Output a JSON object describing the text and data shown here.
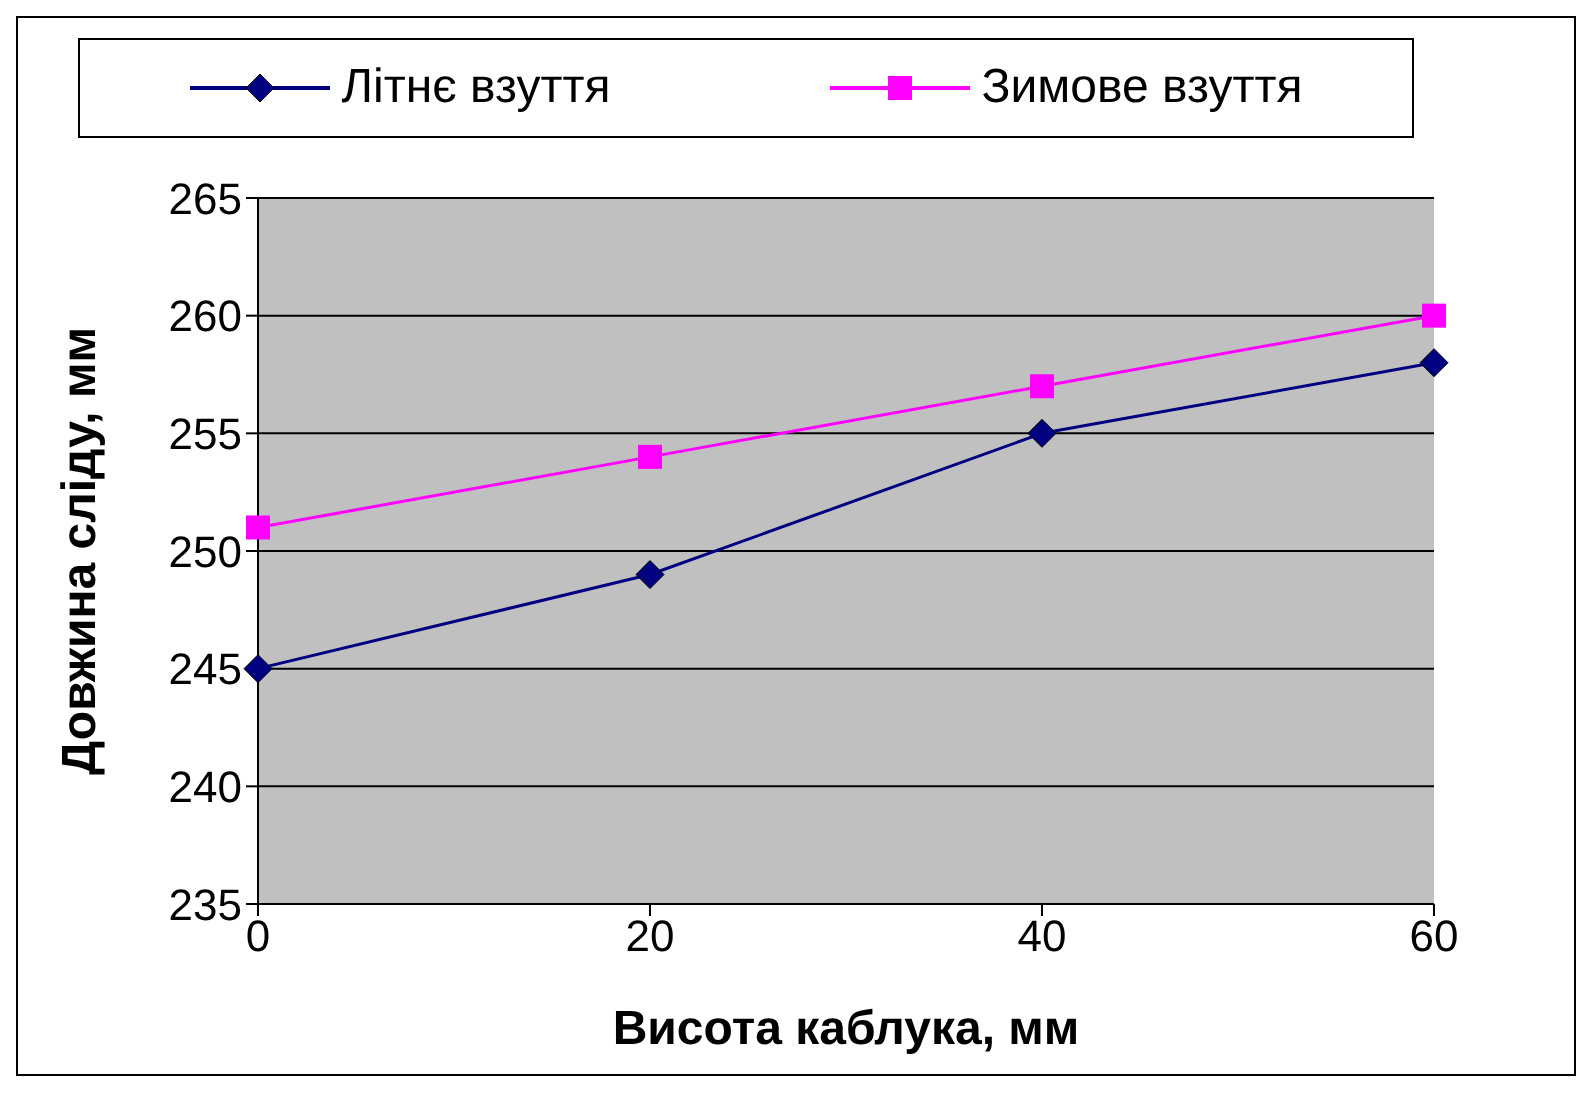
{
  "chart_data": {
    "type": "line",
    "xlabel": "Висота каблука, мм",
    "ylabel": "Довжина сліду, мм",
    "categories": [
      "0",
      "20",
      "40",
      "60"
    ],
    "series": [
      {
        "name": "Літнє взуття",
        "color": "#000080",
        "marker": "diamond",
        "values": [
          245,
          249,
          255,
          258
        ]
      },
      {
        "name": "Зимове взуття",
        "color": "#ff00ff",
        "marker": "square",
        "values": [
          251,
          254,
          257,
          260
        ]
      }
    ],
    "ylim": [
      235,
      265
    ],
    "yticks": [
      235,
      240,
      245,
      250,
      255,
      260,
      265
    ],
    "grid": "y",
    "legend": "top",
    "line_style": "solid"
  }
}
